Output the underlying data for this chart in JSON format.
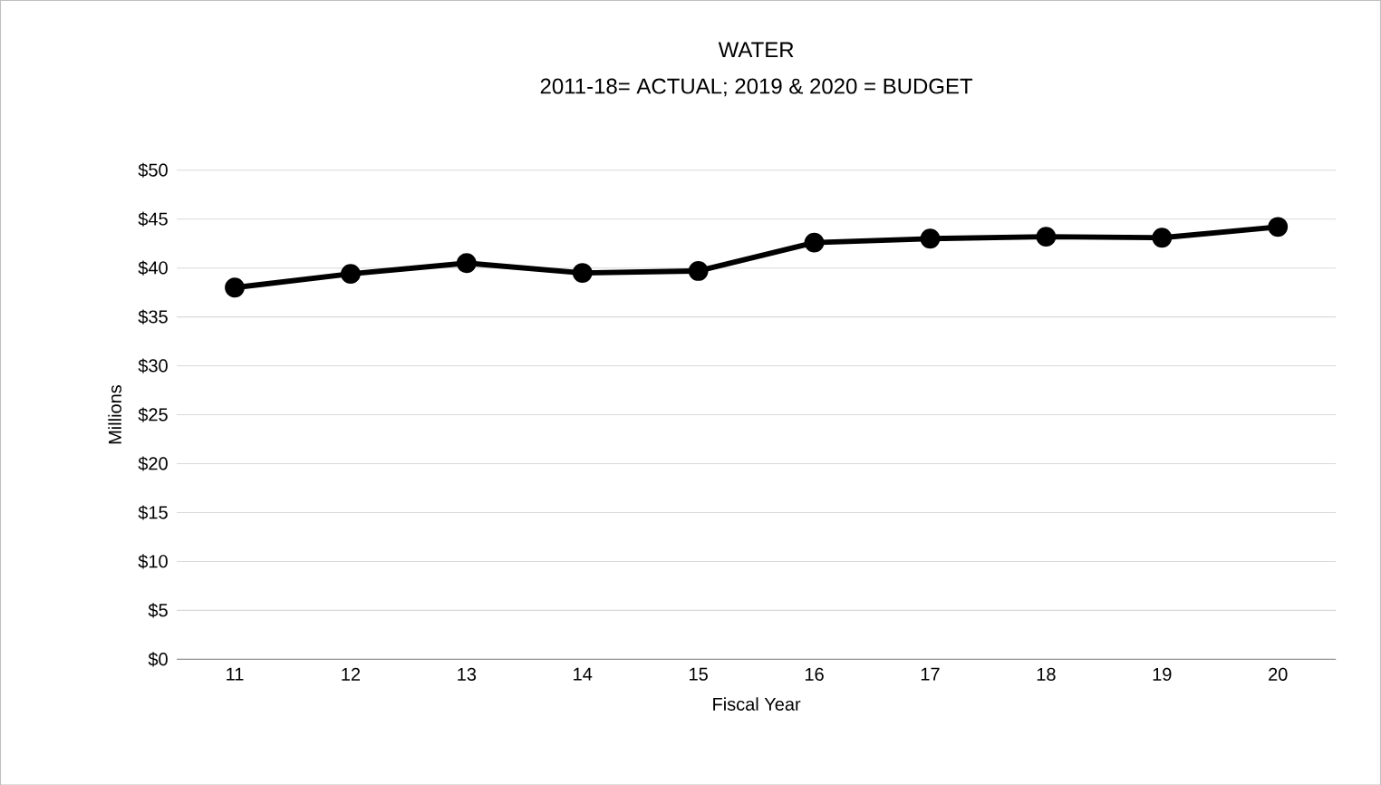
{
  "chart_data": {
    "type": "line",
    "title": "WATER",
    "subtitle": "2011-18= ACTUAL; 2019 & 2020 = BUDGET",
    "xlabel": "Fiscal Year",
    "ylabel": "Millions",
    "categories": [
      "11",
      "12",
      "13",
      "14",
      "15",
      "16",
      "17",
      "18",
      "19",
      "20"
    ],
    "series": [
      {
        "color": "#000000",
        "values": [
          38.0,
          39.4,
          40.5,
          39.5,
          39.7,
          42.6,
          43.0,
          43.2,
          43.1,
          44.2
        ]
      }
    ],
    "ylim": [
      0,
      50
    ],
    "yticks": [
      {
        "value": 0,
        "label": "$0"
      },
      {
        "value": 5,
        "label": "$5"
      },
      {
        "value": 10,
        "label": "$10"
      },
      {
        "value": 15,
        "label": "$15"
      },
      {
        "value": 20,
        "label": "$20"
      },
      {
        "value": 25,
        "label": "$25"
      },
      {
        "value": 30,
        "label": "$30"
      },
      {
        "value": 35,
        "label": "$35"
      },
      {
        "value": 40,
        "label": "$40"
      },
      {
        "value": 45,
        "label": "$45"
      },
      {
        "value": 50,
        "label": "$50"
      }
    ],
    "grid": "y",
    "marker": "circle",
    "line_style": "solid"
  }
}
